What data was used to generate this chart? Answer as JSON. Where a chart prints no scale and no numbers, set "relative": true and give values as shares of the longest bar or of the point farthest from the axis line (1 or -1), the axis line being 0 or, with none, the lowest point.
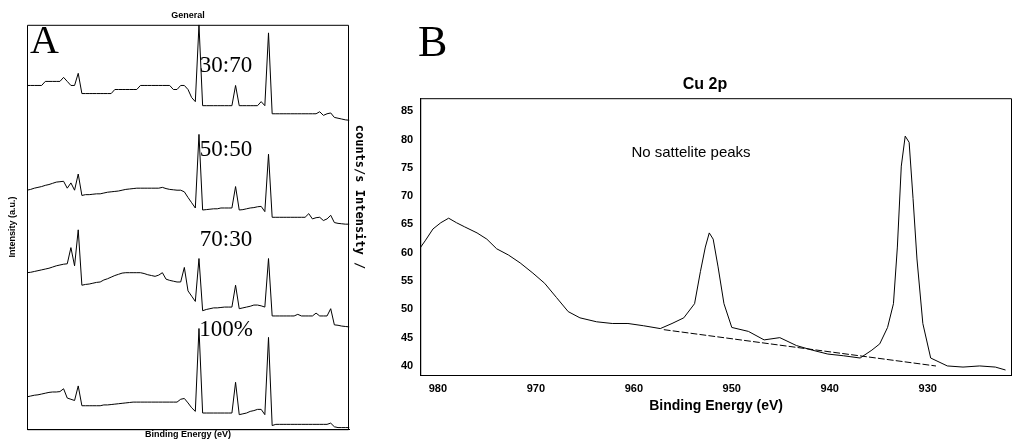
{
  "chart_data": [
    {
      "type": "line",
      "title": "General",
      "xlabel": "Binding Energy (eV)",
      "ylabel": "Intensity (a.u.)",
      "y2label": "counts/s Intensity /",
      "relative": true,
      "legend": false,
      "marker": "none",
      "tick_labels": false,
      "categories": [
        null,
        null,
        null,
        null,
        null,
        null,
        null,
        null,
        null,
        null,
        null,
        null,
        null,
        null,
        null,
        null,
        null,
        null,
        null,
        null,
        null,
        null,
        null,
        null,
        null,
        null,
        null,
        null,
        null,
        null,
        null,
        null,
        null,
        null,
        null,
        null,
        null,
        null,
        null,
        null,
        null,
        null,
        null,
        null,
        null,
        null,
        null,
        null,
        null,
        null,
        null,
        null,
        null,
        null,
        null,
        null,
        null,
        null,
        null,
        null,
        null,
        null,
        null,
        null,
        null,
        null,
        null,
        null,
        null,
        null,
        null,
        null,
        null,
        null,
        null,
        null,
        null,
        null,
        null,
        null,
        null,
        null,
        null,
        null,
        null,
        null,
        null,
        null,
        null
      ],
      "series": [
        {
          "color": "#000000",
          "values": [
            0.85,
            0.85,
            0.85,
            0.85,
            0.85,
            0.86,
            0.86,
            0.86,
            0.86,
            0.86,
            0.87,
            0.86,
            0.85,
            0.85,
            0.88,
            0.83,
            0.83,
            0.83,
            0.83,
            0.83,
            0.83,
            0.83,
            0.83,
            0.83,
            0.84,
            0.84,
            0.84,
            0.84,
            0.84,
            0.84,
            0.84,
            0.85,
            0.85,
            0.85,
            0.85,
            0.85,
            0.85,
            0.85,
            0.85,
            0.85,
            0.84,
            0.84,
            0.85,
            0.85,
            0.84,
            0.82,
            0.81,
            1,
            0.8,
            0.8,
            0.8,
            0.8,
            0.8,
            0.8,
            0.8,
            0.8,
            0.8,
            0.85,
            0.8,
            0.8,
            0.8,
            0.8,
            0.8,
            0.8,
            0.81,
            0.8,
            0.98,
            0.78,
            0.78,
            0.78,
            0.78,
            0.78,
            0.78,
            0.78,
            0.78,
            0.78,
            0.78,
            0.78,
            0.78,
            0.78,
            0.785,
            0.776,
            0.78,
            0.782,
            0.771,
            0.769,
            0.767,
            0.765,
            0.764
          ]
        },
        {
          "color": "#000000",
          "values": [
            0.591,
            0.593,
            0.596,
            0.598,
            0.6,
            0.603,
            0.605,
            0.608,
            0.611,
            0.612,
            0.613,
            0.596,
            0.609,
            0.591,
            0.631,
            0.578,
            0.58,
            0.58,
            0.581,
            0.582,
            0.582,
            0.584,
            0.586,
            0.587,
            0.588,
            0.589,
            0.591,
            0.593,
            0.594,
            0.595,
            0.596,
            0.596,
            0.596,
            0.596,
            0.596,
            0.596,
            0.596,
            0.598,
            0.595,
            0.593,
            0.592,
            0.591,
            0.591,
            0.587,
            0.573,
            0.56,
            0.547,
            0.729,
            0.542,
            0.543,
            0.544,
            0.545,
            0.545,
            0.547,
            0.547,
            0.547,
            0.547,
            0.6,
            0.542,
            0.543,
            0.545,
            0.547,
            0.548,
            0.55,
            0.551,
            0.538,
            0.68,
            0.524,
            0.524,
            0.524,
            0.524,
            0.524,
            0.524,
            0.524,
            0.524,
            0.524,
            0.524,
            0.533,
            0.52,
            0.523,
            0.524,
            0.516,
            0.52,
            0.529,
            0.511,
            0.509,
            0.508,
            0.507,
            0.507
          ]
        },
        {
          "color": "#000000",
          "values": [
            0.387,
            0.388,
            0.39,
            0.392,
            0.394,
            0.396,
            0.398,
            0.401,
            0.404,
            0.406,
            0.408,
            0.409,
            0.449,
            0.404,
            0.493,
            0.356,
            0.358,
            0.359,
            0.361,
            0.363,
            0.364,
            0.369,
            0.372,
            0.376,
            0.38,
            0.383,
            0.386,
            0.387,
            0.387,
            0.387,
            0.387,
            0.387,
            0.385,
            0.382,
            0.38,
            0.378,
            0.381,
            0.387,
            0.371,
            0.368,
            0.366,
            0.364,
            0.364,
            0.4,
            0.342,
            0.329,
            0.316,
            0.422,
            0.293,
            0.296,
            0.298,
            0.3,
            0.3,
            0.301,
            0.302,
            0.302,
            0.302,
            0.356,
            0.298,
            0.3,
            0.302,
            0.304,
            0.307,
            0.307,
            0.305,
            0.302,
            0.422,
            0.28,
            0.28,
            0.28,
            0.28,
            0.28,
            0.28,
            0.28,
            0.284,
            0.28,
            0.28,
            0.28,
            0.28,
            0.287,
            0.28,
            0.28,
            0.28,
            0.298,
            0.258,
            0.257,
            0.255,
            0.254,
            0.253
          ]
        },
        {
          "color": "#000000",
          "values": [
            0.08,
            0.082,
            0.084,
            0.085,
            0.087,
            0.089,
            0.091,
            0.092,
            0.092,
            0.093,
            0.1,
            0.077,
            0.074,
            0.071,
            0.107,
            0.058,
            0.058,
            0.058,
            0.058,
            0.058,
            0.058,
            0.06,
            0.06,
            0.061,
            0.062,
            0.063,
            0.064,
            0.065,
            0.066,
            0.067,
            0.067,
            0.067,
            0.067,
            0.067,
            0.067,
            0.067,
            0.067,
            0.067,
            0.067,
            0.067,
            0.067,
            0.067,
            0.074,
            0.076,
            0.065,
            0.053,
            0.044,
            0.249,
            0.04,
            0.04,
            0.04,
            0.04,
            0.04,
            0.04,
            0.04,
            0.04,
            0.04,
            0.116,
            0.036,
            0.038,
            0.04,
            0.044,
            0.046,
            0.049,
            0.049,
            0.036,
            0.227,
            0.009,
            0.012,
            0.012,
            0.012,
            0.012,
            0.012,
            0.012,
            0.012,
            0.012,
            0.012,
            0.012,
            0.012,
            0.012,
            0.012,
            0.012,
            0.012,
            0.015,
            0.006,
            0.004,
            0.004,
            0.004,
            0.004
          ]
        }
      ],
      "annotations": [
        "A",
        "30:70",
        "50:50",
        "70:30",
        "100%"
      ]
    },
    {
      "type": "line",
      "title": "Cu 2p",
      "xlabel": "Binding Energy (eV)",
      "legend": false,
      "marker": "none",
      "xlim": [
        981.8,
        921.4
      ],
      "xticks": [
        980,
        970,
        960,
        950,
        940,
        930
      ],
      "ylim": [
        38.4,
        87.3
      ],
      "yticks": [
        40,
        45,
        50,
        55,
        60,
        65,
        70,
        75,
        80,
        85
      ],
      "series": [
        {
          "color": "#000000",
          "x": [
            981.75,
            981.3,
            980.5,
            979.7,
            978.9,
            978.1,
            977.3,
            976.0,
            975.0,
            974.0,
            972.8,
            971.6,
            970.3,
            969.1,
            967.9,
            966.7,
            965.5,
            963.8,
            962.2,
            960.6,
            959.0,
            957.3,
            956.1,
            954.9,
            953.8,
            953.2,
            952.7,
            952.3,
            951.9,
            951.4,
            950.8,
            950.0,
            948.3,
            946.7,
            945.1,
            943.4,
            941.8,
            940.2,
            938.6,
            936.9,
            935.7,
            934.9,
            934.1,
            933.5,
            933.1,
            932.7,
            932.3,
            931.9,
            931.5,
            931.1,
            930.5,
            929.7,
            928.0,
            926.4,
            924.7,
            923.1,
            922.1
          ],
          "values": [
            61.0,
            62.1,
            64.2,
            65.3,
            66.1,
            65.3,
            64.6,
            63.5,
            62.4,
            60.7,
            59.6,
            58.2,
            56.4,
            54.6,
            52.1,
            49.6,
            48.5,
            47.8,
            47.5,
            47.5,
            47.1,
            46.6,
            47.5,
            48.5,
            51.0,
            56.7,
            61.0,
            63.5,
            62.4,
            57.5,
            51.0,
            46.8,
            46.1,
            44.6,
            45.0,
            43.6,
            42.8,
            42.1,
            41.8,
            41.4,
            42.8,
            43.9,
            46.8,
            51.0,
            61.0,
            75.3,
            80.6,
            79.5,
            69.6,
            58.9,
            47.5,
            41.4,
            40.0,
            39.8,
            40.0,
            39.8,
            39.3
          ]
        },
        {
          "type": "line",
          "color": "#000000",
          "line_style": "dashed",
          "x": [
            956.9,
            929.2
          ],
          "values": [
            46.4,
            40.0
          ]
        }
      ],
      "annotations": [
        "B",
        "No sattelite peaks"
      ]
    }
  ]
}
